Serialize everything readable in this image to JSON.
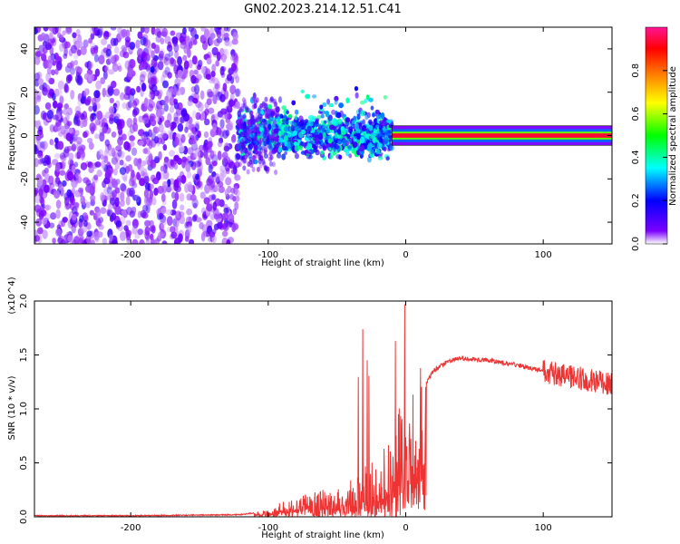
{
  "chart_data": [
    {
      "type": "heatmap",
      "title": "GN02.2023.214.12.51.C41",
      "xlabel": "Height of straight line (km)",
      "ylabel": "Frequency (Hz)",
      "xlim": [
        -270,
        150
      ],
      "ylim": [
        -50,
        50
      ],
      "x_ticks": [
        -200,
        -100,
        0,
        100
      ],
      "y_ticks": [
        -40,
        -20,
        0,
        20,
        40
      ],
      "colorbar": {
        "label": "Normalized spectral amplitude",
        "range": [
          0.0,
          1.0
        ],
        "ticks": [
          "0.0",
          "0.2",
          "0.4",
          "0.6",
          "0.8"
        ],
        "colors": [
          "#ffffff",
          "#7b00ff",
          "#0000ff",
          "#00ffff",
          "#00ff00",
          "#ffff00",
          "#ff8000",
          "#ff0000",
          "#ff1493"
        ]
      },
      "regions": [
        {
          "name": "noise",
          "x_range": [
            -270,
            -122
          ],
          "freq_range": [
            -50,
            50
          ],
          "amplitude": [
            0.05,
            0.2
          ]
        },
        {
          "name": "transition",
          "x_range": [
            -122,
            -10
          ],
          "freq_range": [
            -10,
            12
          ],
          "amplitude": [
            0.15,
            0.45
          ]
        },
        {
          "name": "carrier",
          "x_range": [
            -10,
            150
          ],
          "freq_range": [
            -1,
            1
          ],
          "amplitude": [
            0.9,
            1.0
          ]
        }
      ]
    },
    {
      "type": "line",
      "xlabel": "Height of straight line (km)",
      "ylabel": "SNR (10 * v/v)",
      "y_multiplier": "(x10^4)",
      "xlim": [
        -270,
        150
      ],
      "ylim": [
        0.0,
        2.0
      ],
      "x_ticks": [
        -200,
        -100,
        0,
        100
      ],
      "y_ticks": [
        "0.0",
        "0.5",
        "1.0",
        "1.5",
        "2.0"
      ],
      "series": [
        {
          "color": "#ee3333",
          "x": [
            -270,
            -200,
            -120,
            -100,
            -90,
            -80,
            -60,
            -40,
            -20,
            -10,
            -5,
            0,
            5,
            10,
            20,
            30,
            40,
            60,
            80,
            100,
            120,
            140,
            150
          ],
          "y": [
            0.01,
            0.01,
            0.02,
            0.05,
            0.12,
            0.15,
            0.2,
            0.3,
            0.45,
            0.6,
            0.85,
            0.75,
            0.9,
            1.15,
            1.35,
            1.44,
            1.47,
            1.45,
            1.41,
            1.35,
            1.3,
            1.25,
            1.22
          ]
        }
      ]
    }
  ]
}
